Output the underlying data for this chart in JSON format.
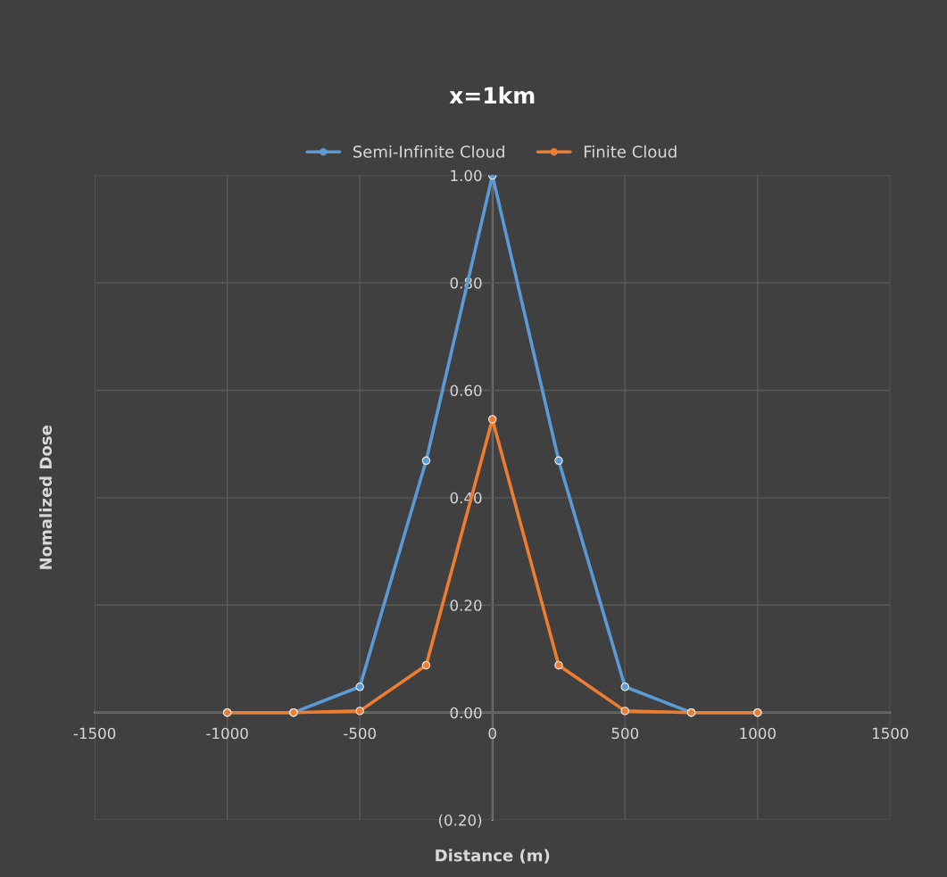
{
  "chart_data": {
    "type": "line",
    "title": "x=1km",
    "xlabel": "Distance (m)",
    "ylabel": "Nomalized Dose",
    "x": [
      -1000,
      -750,
      -500,
      -250,
      0,
      250,
      500,
      750,
      1000
    ],
    "series": [
      {
        "name": "Semi-Infinite Cloud",
        "color": "#5b9bd5",
        "values": [
          0.0,
          0.0,
          0.048,
          0.469,
          1.0,
          0.469,
          0.048,
          0.0,
          0.0
        ]
      },
      {
        "name": "Finite Cloud",
        "color": "#ed7d31",
        "values": [
          0.0,
          0.0,
          0.003,
          0.088,
          0.546,
          0.088,
          0.003,
          0.0,
          0.0
        ]
      }
    ],
    "xlim": [
      -1500,
      1500
    ],
    "xticks": [
      -1500,
      -1000,
      -500,
      0,
      500,
      1000,
      1500
    ],
    "ylim": [
      -0.2,
      1.0
    ],
    "yticks": [
      {
        "value": -0.2,
        "label": "(0.20)"
      },
      {
        "value": 0.0,
        "label": "0.00"
      },
      {
        "value": 0.2,
        "label": "0.20"
      },
      {
        "value": 0.4,
        "label": "0.40"
      },
      {
        "value": 0.6,
        "label": "0.60"
      },
      {
        "value": 0.8,
        "label": "0.80"
      },
      {
        "value": 1.0,
        "label": "1.00"
      }
    ],
    "grid": true,
    "legend": "top",
    "marker": "circle",
    "line_style": "solid"
  }
}
